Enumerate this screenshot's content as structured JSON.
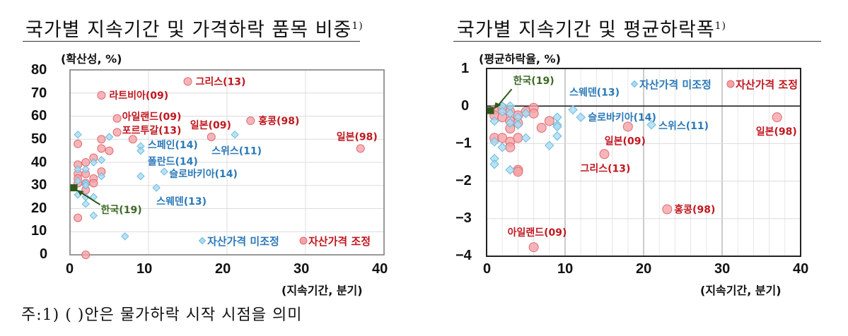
{
  "left": {
    "title": "국가별 지속기간 및 가격하락 품목 비중",
    "title_sup": "1)",
    "ylabel": "(확산성, %)",
    "xlabel": "(지속기간, 분기)",
    "yticks": [
      "80",
      "70",
      "60",
      "50",
      "40",
      "30",
      "20",
      "10",
      "0"
    ],
    "xticks": [
      "0",
      "10",
      "20",
      "30",
      "40"
    ],
    "legend": {
      "not_adjusted": "자산가격 미조정",
      "adjusted": "자산가격 조정"
    },
    "annotations": {
      "greece": "그리스(13)",
      "latvia": "라트비아(09)",
      "ireland": "아일랜드(09)",
      "portugal": "포르투갈(13)",
      "japan09": "일본(09)",
      "hongkong": "홍콩(98)",
      "japan98": "일본(98)",
      "spain": "스페인(14)",
      "poland": "폴란드(14)",
      "swiss": "스위스(11)",
      "slovakia": "슬로바키아(14)",
      "sweden": "스웨덴(13)",
      "korea": "한국(19)"
    }
  },
  "right": {
    "title": "국가별 지속기간 및 평균하락폭",
    "title_sup": "1)",
    "ylabel": "(평균하락율, %)",
    "xlabel": "(지속기간, 분기)",
    "yticks": [
      "1",
      "0",
      "−1",
      "−2",
      "−3",
      "−4"
    ],
    "xticks": [
      "0",
      "10",
      "20",
      "30",
      "40"
    ],
    "legend": {
      "not_adjusted": "자산가격 미조정",
      "adjusted": "자산가격 조정"
    },
    "annotations": {
      "korea": "한국(19)",
      "sweden": "스웨덴(13)",
      "slovakia": "슬로바키아(14)",
      "swiss": "스위스(11)",
      "japan09": "일본(09)",
      "japan98": "일본(98)",
      "greece": "그리스(13)",
      "hongkong": "홍콩(98)",
      "ireland": "아일랜드(09)"
    }
  },
  "footnote": "주:1) (    )안은 물가하락 시작 시점을 의미",
  "colors": {
    "adjusted_fill": "#f4a3a6",
    "adjusted_stroke": "#e06a70",
    "adjusted_text": "#c0171f",
    "not_adjusted_fill": "#a9dcf3",
    "not_adjusted_stroke": "#6cb8dd",
    "not_adjusted_text": "#2b79b8",
    "korea": "#2e5a1c",
    "korea_text": "#3b6a24"
  },
  "chart_data": [
    {
      "type": "scatter",
      "title": "국가별 지속기간 및 가격하락 품목 비중",
      "xlabel": "지속기간, 분기",
      "ylabel": "확산성, %",
      "xlim": [
        0,
        40
      ],
      "ylim": [
        0,
        80
      ],
      "grid": true,
      "legend_position": "bottom-right inside",
      "series": [
        {
          "name": "자산가격 조정",
          "marker": "circle",
          "points": [
            {
              "x": 15,
              "y": 75,
              "label": "그리스(13)"
            },
            {
              "x": 4,
              "y": 69,
              "label": "라트비아(09)"
            },
            {
              "x": 6,
              "y": 59,
              "label": "아일랜드(09)"
            },
            {
              "x": 6,
              "y": 53,
              "label": "포르투갈(13)"
            },
            {
              "x": 18,
              "y": 51,
              "label": "일본(09)"
            },
            {
              "x": 23,
              "y": 58,
              "label": "홍콩(98)"
            },
            {
              "x": 37,
              "y": 46,
              "label": "일본(98)"
            },
            {
              "x": 8,
              "y": 50
            },
            {
              "x": 1,
              "y": 48
            },
            {
              "x": 4,
              "y": 50
            },
            {
              "x": 4,
              "y": 46
            },
            {
              "x": 5,
              "y": 45
            },
            {
              "x": 3,
              "y": 42
            },
            {
              "x": 2,
              "y": 40
            },
            {
              "x": 1,
              "y": 39
            },
            {
              "x": 1,
              "y": 35
            },
            {
              "x": 2,
              "y": 35
            },
            {
              "x": 3,
              "y": 33
            },
            {
              "x": 4,
              "y": 36
            },
            {
              "x": 1,
              "y": 33
            },
            {
              "x": 2,
              "y": 31
            },
            {
              "x": 3,
              "y": 31
            },
            {
              "x": 1,
              "y": 31
            },
            {
              "x": 2,
              "y": 28
            },
            {
              "x": 1,
              "y": 16
            },
            {
              "x": 2,
              "y": 0
            }
          ]
        },
        {
          "name": "자산가격 미조정",
          "marker": "diamond",
          "points": [
            {
              "x": 9,
              "y": 47,
              "label": "스페인(14)"
            },
            {
              "x": 9,
              "y": 45,
              "label": "폴란드(14)"
            },
            {
              "x": 21,
              "y": 52,
              "label": "스위스(11)"
            },
            {
              "x": 12,
              "y": 36,
              "label": "슬로바키아(14)"
            },
            {
              "x": 11,
              "y": 29,
              "label": "스웨덴(13)"
            },
            {
              "x": 1,
              "y": 52
            },
            {
              "x": 5,
              "y": 51
            },
            {
              "x": 3,
              "y": 40
            },
            {
              "x": 4,
              "y": 41
            },
            {
              "x": 1,
              "y": 37
            },
            {
              "x": 2,
              "y": 37
            },
            {
              "x": 4,
              "y": 34
            },
            {
              "x": 9,
              "y": 34
            },
            {
              "x": 1,
              "y": 32
            },
            {
              "x": 2,
              "y": 31
            },
            {
              "x": 2,
              "y": 30
            },
            {
              "x": 1,
              "y": 26
            },
            {
              "x": 2,
              "y": 25
            },
            {
              "x": 3,
              "y": 25
            },
            {
              "x": 2,
              "y": 22
            },
            {
              "x": 3,
              "y": 17
            },
            {
              "x": 7,
              "y": 8
            }
          ]
        },
        {
          "name": "한국",
          "marker": "square",
          "points": [
            {
              "x": 0.5,
              "y": 29,
              "label": "한국(19)"
            }
          ]
        }
      ]
    },
    {
      "type": "scatter",
      "title": "국가별 지속기간 및 평균하락폭",
      "xlabel": "지속기간, 분기",
      "ylabel": "평균하락율, %",
      "xlim": [
        0,
        40
      ],
      "ylim": [
        -4,
        1
      ],
      "grid": true,
      "legend_position": "top-right inside",
      "series": [
        {
          "name": "자산가격 조정",
          "marker": "circle",
          "points": [
            {
              "x": 18,
              "y": -0.55,
              "label": "일본(09)"
            },
            {
              "x": 37,
              "y": -0.3,
              "label": "일본(98)"
            },
            {
              "x": 15,
              "y": -1.28,
              "label": "그리스(13)"
            },
            {
              "x": 23,
              "y": -2.75,
              "label": "홍콩(98)"
            },
            {
              "x": 6,
              "y": -3.76,
              "label": "아일랜드(09)"
            },
            {
              "x": 1,
              "y": -0.1
            },
            {
              "x": 1,
              "y": -0.25
            },
            {
              "x": 2,
              "y": -0.05
            },
            {
              "x": 2,
              "y": -0.3
            },
            {
              "x": 3,
              "y": -0.15
            },
            {
              "x": 3,
              "y": -0.4
            },
            {
              "x": 4,
              "y": -0.25
            },
            {
              "x": 5,
              "y": -0.15
            },
            {
              "x": 6,
              "y": -0.05
            },
            {
              "x": 6,
              "y": -0.2
            },
            {
              "x": 3,
              "y": -0.6
            },
            {
              "x": 4,
              "y": -0.45
            },
            {
              "x": 7,
              "y": -0.58
            },
            {
              "x": 8,
              "y": -0.4
            },
            {
              "x": 1,
              "y": -0.85
            },
            {
              "x": 2,
              "y": -0.85
            },
            {
              "x": 3,
              "y": -0.95
            },
            {
              "x": 3,
              "y": -1.1
            },
            {
              "x": 4,
              "y": -0.85
            },
            {
              "x": 4,
              "y": -1.7
            },
            {
              "x": 4,
              "y": -1.75
            }
          ]
        },
        {
          "name": "자산가격 미조정",
          "marker": "diamond",
          "points": [
            {
              "x": 11,
              "y": -0.1,
              "label": "스웨덴(13)"
            },
            {
              "x": 12,
              "y": -0.3,
              "label": "슬로바키아(14)"
            },
            {
              "x": 21,
              "y": -0.5,
              "label": "스위스(11)"
            },
            {
              "x": 1,
              "y": -0.4
            },
            {
              "x": 2,
              "y": 0.0
            },
            {
              "x": 2,
              "y": -0.15
            },
            {
              "x": 3,
              "y": 0.0
            },
            {
              "x": 3,
              "y": -0.2
            },
            {
              "x": 3,
              "y": -0.45
            },
            {
              "x": 4,
              "y": -0.3
            },
            {
              "x": 4,
              "y": -0.5
            },
            {
              "x": 5,
              "y": -0.2
            },
            {
              "x": 9,
              "y": -0.3
            },
            {
              "x": 9,
              "y": -0.5
            },
            {
              "x": 9,
              "y": -0.55
            },
            {
              "x": 9,
              "y": -0.8
            },
            {
              "x": 1,
              "y": -0.95
            },
            {
              "x": 2,
              "y": -1.1
            },
            {
              "x": 5,
              "y": -0.85
            },
            {
              "x": 8,
              "y": -1.05
            },
            {
              "x": 1,
              "y": -1.4
            },
            {
              "x": 1,
              "y": -1.55
            },
            {
              "x": 3,
              "y": -1.7
            }
          ]
        },
        {
          "name": "한국",
          "marker": "square",
          "points": [
            {
              "x": 0.5,
              "y": -0.12,
              "label": "한국(19)"
            }
          ]
        }
      ]
    }
  ]
}
